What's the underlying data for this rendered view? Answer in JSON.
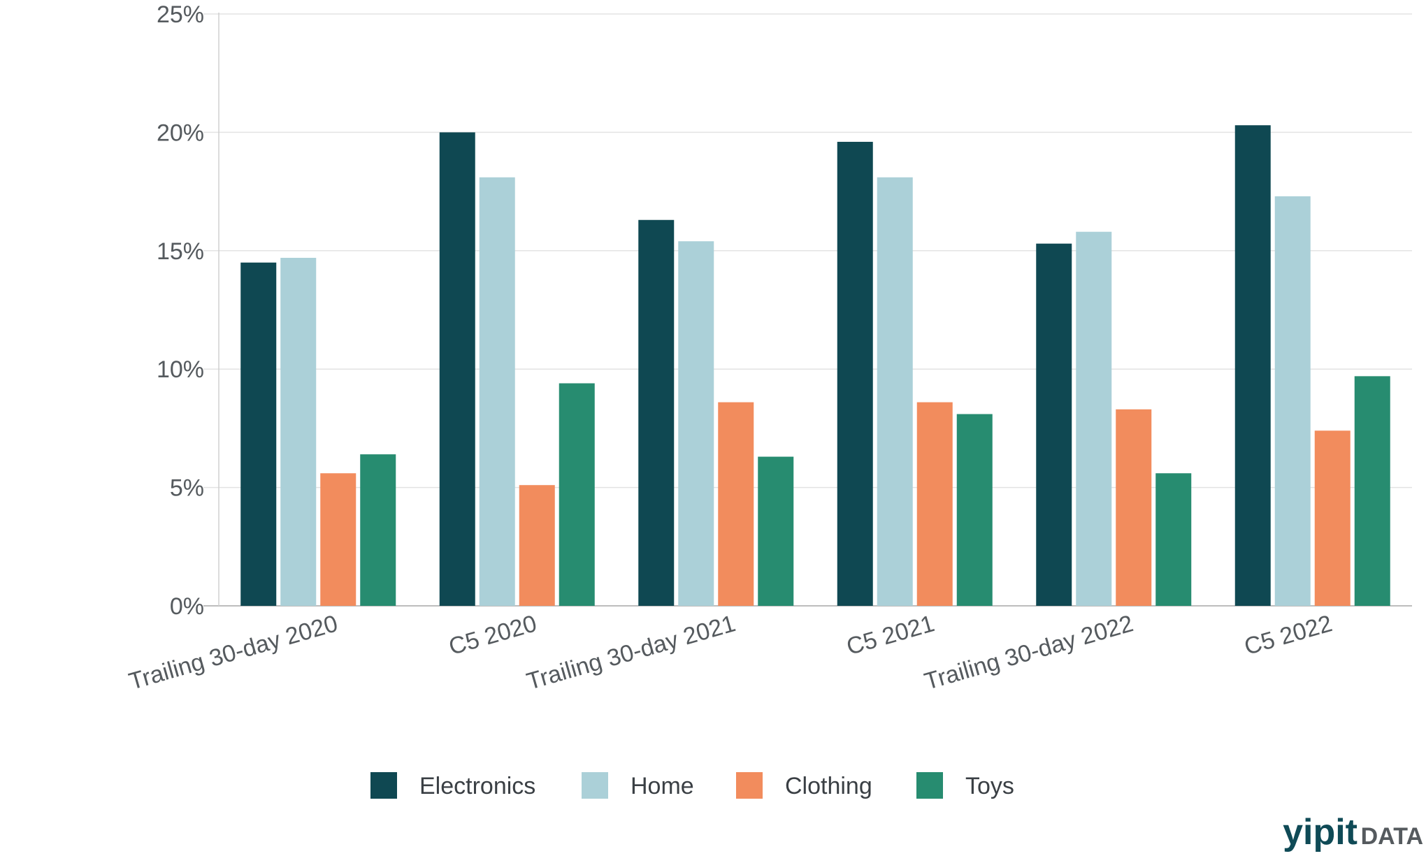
{
  "chart_data": {
    "type": "bar",
    "categories": [
      "Trailing 30-day 2020",
      "C5 2020",
      "Trailing 30-day 2021",
      "C5 2021",
      "Trailing 30-day 2022",
      "C5 2022"
    ],
    "series": [
      {
        "name": "Electronics",
        "color": "#0f4852",
        "values": [
          14.5,
          20.0,
          16.3,
          19.6,
          15.3,
          20.3
        ]
      },
      {
        "name": "Home",
        "color": "#abd0d8",
        "values": [
          14.7,
          18.1,
          15.4,
          18.1,
          15.8,
          17.3
        ]
      },
      {
        "name": "Clothing",
        "color": "#f28c5d",
        "values": [
          5.6,
          5.1,
          8.6,
          8.6,
          8.3,
          7.4
        ]
      },
      {
        "name": "Toys",
        "color": "#278c70",
        "values": [
          6.4,
          9.4,
          6.3,
          8.1,
          5.6,
          9.7
        ]
      }
    ],
    "yticks": [
      "0%",
      "5%",
      "10%",
      "15%",
      "20%",
      "25%"
    ],
    "ylim": [
      0,
      25
    ],
    "grid": true,
    "legend_position": "bottom-center",
    "xlabel": "",
    "ylabel": ""
  },
  "watermark": {
    "brand": "yipit",
    "suffix": "DATA"
  }
}
